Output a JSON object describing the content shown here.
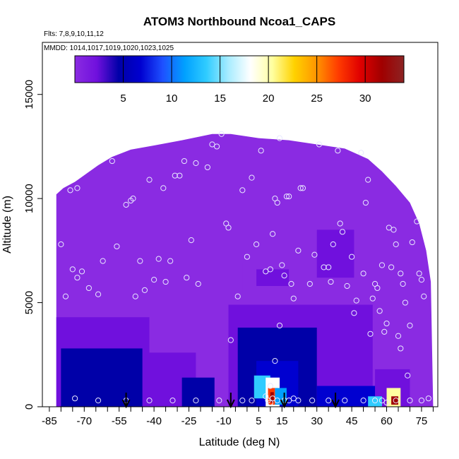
{
  "chart_data": {
    "type": "heatmap",
    "title": "ATOM3 Northbound Ncoa1_CAPS",
    "flights_label": "Flts: 7,8,9,10,11,12",
    "dates_label": "MMDD: 1014,1017,1019,1020,1023,1025",
    "xlabel": "Latitude (deg N)",
    "ylabel": "Altitude (m)",
    "xlim": [
      -88,
      82
    ],
    "ylim": [
      0,
      17500
    ],
    "x_ticks": [
      "-85",
      "-70",
      "-55",
      "-40",
      "-25",
      "-10",
      "5",
      "15",
      "30",
      "45",
      "60",
      "75"
    ],
    "y_ticks": [
      "0",
      "5000",
      "10000",
      "15000"
    ],
    "colorbar": {
      "min": 0,
      "max": 34,
      "ticks": [
        "5",
        "10",
        "15",
        "20",
        "25",
        "30"
      ],
      "colors": [
        "#8a2be2",
        "#7010dd",
        "#0000a8",
        "#0000d0",
        "#1e50ff",
        "#00a0ff",
        "#30ccff",
        "#a8ecff",
        "#ffffff",
        "#ffffa0",
        "#ffd200",
        "#ff9600",
        "#ff3c00",
        "#e00000",
        "#a00000",
        "#8c2323"
      ]
    },
    "ceiling": [
      [
        -82,
        10200
      ],
      [
        -79,
        10500
      ],
      [
        -74,
        10800
      ],
      [
        -69,
        11200
      ],
      [
        -64,
        11600
      ],
      [
        -58,
        12000
      ],
      [
        -50,
        12350
      ],
      [
        -40,
        12550
      ],
      [
        -28,
        12800
      ],
      [
        -15,
        13100
      ],
      [
        -7,
        13100
      ],
      [
        5,
        12900
      ],
      [
        18,
        12800
      ],
      [
        30,
        12600
      ],
      [
        42,
        12400
      ],
      [
        52,
        11900
      ],
      [
        58,
        11300
      ],
      [
        64,
        10600
      ],
      [
        70,
        9800
      ],
      [
        74,
        8800
      ],
      [
        77,
        7500
      ],
      [
        79,
        6000
      ],
      [
        80,
        0
      ]
    ],
    "features": [
      {
        "x": [
          -82,
          -42
        ],
        "y": [
          0,
          4300
        ],
        "value": 3
      },
      {
        "x": [
          -80,
          -45
        ],
        "y": [
          0,
          2800
        ],
        "value": 5
      },
      {
        "x": [
          -42,
          -22
        ],
        "y": [
          0,
          2600
        ],
        "value": 4
      },
      {
        "x": [
          -28,
          -14
        ],
        "y": [
          0,
          1400
        ],
        "value": 6
      },
      {
        "x": [
          -8,
          54
        ],
        "y": [
          0,
          4900
        ],
        "value": 3
      },
      {
        "x": [
          -4,
          30
        ],
        "y": [
          0,
          3800
        ],
        "value": 6
      },
      {
        "x": [
          4,
          22
        ],
        "y": [
          0,
          2200
        ],
        "value": 8
      },
      {
        "x": [
          3,
          10
        ],
        "y": [
          400,
          1500
        ],
        "value": 13
      },
      {
        "x": [
          8,
          14
        ],
        "y": [
          0,
          1400
        ],
        "value": 18
      },
      {
        "x": [
          9,
          12
        ],
        "y": [
          100,
          900
        ],
        "value": 26
      },
      {
        "x": [
          10,
          11.5
        ],
        "y": [
          200,
          700
        ],
        "value": 30
      },
      {
        "x": [
          12,
          17
        ],
        "y": [
          100,
          900
        ],
        "value": 12
      },
      {
        "x": [
          30,
          56
        ],
        "y": [
          0,
          1000
        ],
        "value": 7
      },
      {
        "x": [
          55,
          70
        ],
        "y": [
          0,
          1800
        ],
        "value": 4
      },
      {
        "x": [
          60,
          66
        ],
        "y": [
          0,
          900
        ],
        "value": 20
      },
      {
        "x": [
          62,
          65
        ],
        "y": [
          100,
          500
        ],
        "value": 31
      },
      {
        "x": [
          52,
          58
        ],
        "y": [
          0,
          500
        ],
        "value": 14
      },
      {
        "x": [
          -2,
          20
        ],
        "y": [
          5500,
          6900
        ],
        "value": 2
      },
      {
        "x": [
          4,
          18
        ],
        "y": [
          5800,
          6600
        ],
        "value": 3.5
      },
      {
        "x": [
          30,
          46
        ],
        "y": [
          6200,
          8500
        ],
        "value": 2.5
      },
      {
        "x": [
          36,
          44
        ],
        "y": [
          6600,
          8100
        ],
        "value": 4
      }
    ],
    "observations": [
      [
        -80,
        7800
      ],
      [
        -78,
        5300
      ],
      [
        -75,
        6600
      ],
      [
        -73,
        6200
      ],
      [
        -71,
        6500
      ],
      [
        -68,
        5700
      ],
      [
        -76,
        10400
      ],
      [
        -73,
        10500
      ],
      [
        -64,
        5400
      ],
      [
        -62,
        7000
      ],
      [
        -58,
        11800
      ],
      [
        -56,
        7700
      ],
      [
        -52,
        9700
      ],
      [
        -50,
        9900
      ],
      [
        -49,
        10000
      ],
      [
        -48,
        5300
      ],
      [
        -46,
        7000
      ],
      [
        -44,
        5600
      ],
      [
        -42,
        10900
      ],
      [
        -40,
        6100
      ],
      [
        -38,
        7100
      ],
      [
        -36,
        10500
      ],
      [
        -35,
        6000
      ],
      [
        -33,
        7000
      ],
      [
        -31,
        11100
      ],
      [
        -29,
        11100
      ],
      [
        -27,
        11800
      ],
      [
        -26,
        6200
      ],
      [
        -24,
        8000
      ],
      [
        -22,
        11700
      ],
      [
        -21,
        5900
      ],
      [
        -17,
        11500
      ],
      [
        -15,
        12600
      ],
      [
        -13,
        12500
      ],
      [
        -11,
        13100
      ],
      [
        -9,
        8800
      ],
      [
        -8,
        8600
      ],
      [
        -7,
        3200
      ],
      [
        -4,
        5300
      ],
      [
        -2,
        10400
      ],
      [
        0,
        7200
      ],
      [
        2,
        11000
      ],
      [
        4,
        7800
      ],
      [
        6,
        12300
      ],
      [
        8,
        6500
      ],
      [
        10,
        6600
      ],
      [
        11,
        8300
      ],
      [
        12,
        10000
      ],
      [
        13,
        9800
      ],
      [
        14,
        12900
      ],
      [
        15,
        6800
      ],
      [
        16,
        6300
      ],
      [
        17,
        10100
      ],
      [
        18,
        10100
      ],
      [
        19,
        5900
      ],
      [
        20,
        5200
      ],
      [
        22,
        7500
      ],
      [
        23,
        10500
      ],
      [
        24,
        10500
      ],
      [
        27,
        5900
      ],
      [
        29,
        7300
      ],
      [
        31,
        12600
      ],
      [
        33,
        6700
      ],
      [
        35,
        6700
      ],
      [
        36,
        6000
      ],
      [
        37,
        7800
      ],
      [
        39,
        12300
      ],
      [
        40,
        8800
      ],
      [
        41,
        8400
      ],
      [
        43,
        5800
      ],
      [
        45,
        7200
      ],
      [
        46,
        4500
      ],
      [
        47,
        5100
      ],
      [
        49,
        12200
      ],
      [
        50,
        6400
      ],
      [
        51,
        9800
      ],
      [
        52,
        10900
      ],
      [
        53,
        3500
      ],
      [
        54,
        5200
      ],
      [
        55,
        5900
      ],
      [
        56,
        5700
      ],
      [
        57,
        4600
      ],
      [
        58,
        6800
      ],
      [
        59,
        3600
      ],
      [
        60,
        4000
      ],
      [
        61,
        8600
      ],
      [
        62,
        6700
      ],
      [
        63,
        8500
      ],
      [
        64,
        7800
      ],
      [
        65,
        3400
      ],
      [
        66,
        6400
      ],
      [
        66,
        2800
      ],
      [
        67,
        5900
      ],
      [
        68,
        5000
      ],
      [
        69,
        1500
      ],
      [
        70,
        3900
      ],
      [
        71,
        7900
      ],
      [
        73,
        8900
      ],
      [
        74,
        6400
      ],
      [
        75,
        6100
      ],
      [
        76,
        5300
      ],
      [
        -74,
        400
      ],
      [
        -64,
        300
      ],
      [
        -52,
        300
      ],
      [
        -42,
        300
      ],
      [
        -32,
        300
      ],
      [
        -22,
        300
      ],
      [
        -12,
        300
      ],
      [
        -2,
        300
      ],
      [
        2,
        300
      ],
      [
        8,
        500
      ],
      [
        9,
        300
      ],
      [
        10,
        200
      ],
      [
        11,
        400
      ],
      [
        13,
        300
      ],
      [
        16,
        300
      ],
      [
        18,
        300
      ],
      [
        22,
        300
      ],
      [
        28,
        300
      ],
      [
        35,
        300
      ],
      [
        42,
        300
      ],
      [
        50,
        300
      ],
      [
        55,
        300
      ],
      [
        58,
        300
      ],
      [
        60,
        200
      ],
      [
        64,
        300
      ],
      [
        70,
        300
      ],
      [
        75,
        300
      ],
      [
        78,
        400
      ],
      [
        10,
        1000
      ],
      [
        12,
        2200
      ],
      [
        14,
        3900
      ],
      [
        20,
        400
      ]
    ],
    "arrows": [
      -52,
      -7,
      16,
      38
    ]
  }
}
